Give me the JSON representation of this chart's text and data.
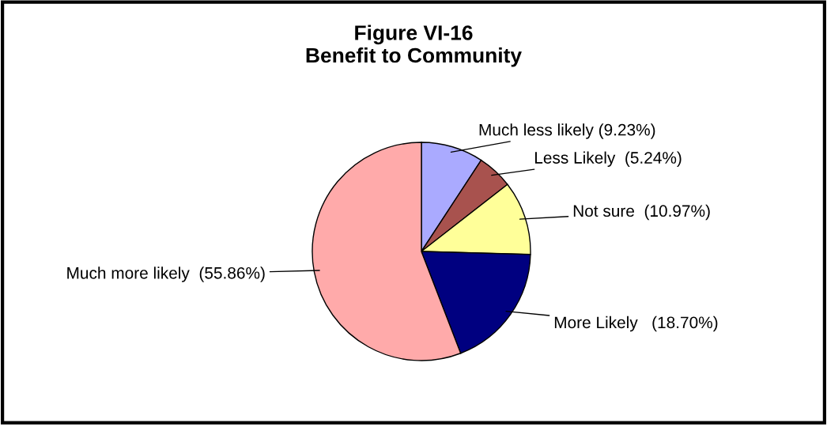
{
  "chart_data": {
    "type": "pie",
    "title": "Figure VI-16\nBenefit to Community",
    "categories": [
      "Much less likely (9.23%)",
      "Less Likely  (5.24%)",
      "Not sure  (10.97%)",
      "More Likely   (18.70%)",
      "Much more likely  (55.86%)"
    ],
    "values": [
      9.23,
      5.24,
      10.97,
      18.7,
      55.86
    ],
    "colors": [
      "#aaaaff",
      "#a8524e",
      "#ffff99",
      "#000080",
      "#ffaaaa"
    ],
    "legend": false
  }
}
